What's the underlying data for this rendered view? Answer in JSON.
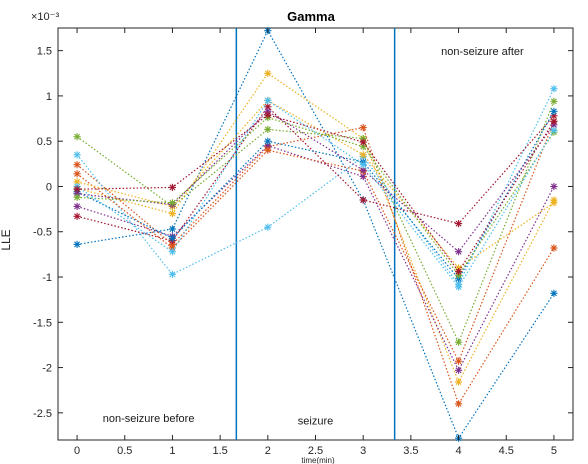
{
  "chart_data": {
    "type": "line",
    "title": "Gamma",
    "xlabel": "time(min)",
    "ylabel": "LLE",
    "y_exponent": "×10⁻³",
    "xlim": [
      -0.2,
      5.2
    ],
    "ylim": [
      -2.8,
      1.75
    ],
    "xticks": [
      0,
      0.5,
      1,
      1.5,
      2,
      2.5,
      3,
      3.5,
      4,
      4.5,
      5
    ],
    "xtick_labels": [
      "0",
      "0.5",
      "1",
      "1.5",
      "2",
      "2.5",
      "3",
      "3.5",
      "4",
      "4.5",
      "5"
    ],
    "yticks": [
      -2.5,
      -2,
      -1.5,
      -1,
      -0.5,
      0,
      0.5,
      1,
      1.5
    ],
    "ytick_labels": [
      "-2.5",
      "-2",
      "-1.5",
      "-1",
      "-0.5",
      "0",
      "0.5",
      "1",
      "1.5"
    ],
    "grid": false,
    "x": [
      0,
      1,
      2,
      3,
      4,
      5
    ],
    "vlines": [
      1.67,
      3.33
    ],
    "vline_color": "#0072BD",
    "annotations": [
      {
        "text": "non-seizure  before",
        "x": 0.75,
        "y": -2.6
      },
      {
        "text": "seizure",
        "x": 2.5,
        "y": -2.63
      },
      {
        "text": "non-seizure  after",
        "x": 4.25,
        "y": 1.45
      }
    ],
    "series": [
      {
        "color": "#0072BD",
        "values": [
          -0.64,
          -0.47,
          1.72,
          -0.15,
          -2.78,
          -1.18
        ]
      },
      {
        "color": "#D95319",
        "values": [
          0.24,
          -0.64,
          0.44,
          0.65,
          -2.4,
          -0.68
        ]
      },
      {
        "color": "#EDB120",
        "values": [
          -0.02,
          -0.3,
          1.25,
          0.53,
          -2.16,
          -0.15
        ]
      },
      {
        "color": "#7E2F8E",
        "values": [
          -0.22,
          -0.55,
          0.45,
          0.11,
          -2.03,
          0.0
        ]
      },
      {
        "color": "#77AC30",
        "values": [
          0.55,
          -0.22,
          0.63,
          0.53,
          -1.72,
          0.94
        ]
      },
      {
        "color": "#4DBEEE",
        "values": [
          0.35,
          -0.97,
          -0.45,
          0.33,
          -1.08,
          1.08
        ]
      },
      {
        "color": "#A2142F",
        "values": [
          -0.33,
          -0.6,
          0.88,
          -0.15,
          -0.41,
          0.78
        ]
      },
      {
        "color": "#0072BD",
        "values": [
          -0.06,
          -0.57,
          0.5,
          0.27,
          -1.02,
          0.83
        ]
      },
      {
        "color": "#D95319",
        "values": [
          0.14,
          -0.68,
          0.4,
          0.17,
          -1.93,
          0.72
        ]
      },
      {
        "color": "#EDB120",
        "values": [
          0.05,
          -0.22,
          0.95,
          0.35,
          -0.9,
          -0.18
        ]
      },
      {
        "color": "#7E2F8E",
        "values": [
          -0.08,
          -0.2,
          0.83,
          0.18,
          -0.72,
          0.68
        ]
      },
      {
        "color": "#77AC30",
        "values": [
          -0.12,
          -0.18,
          0.76,
          0.44,
          -0.98,
          0.6
        ]
      },
      {
        "color": "#4DBEEE",
        "values": [
          0.0,
          -0.72,
          0.95,
          0.24,
          -1.11,
          0.62
        ]
      },
      {
        "color": "#A2142F",
        "values": [
          -0.03,
          -0.01,
          0.79,
          0.49,
          -0.94,
          0.72
        ]
      }
    ]
  }
}
